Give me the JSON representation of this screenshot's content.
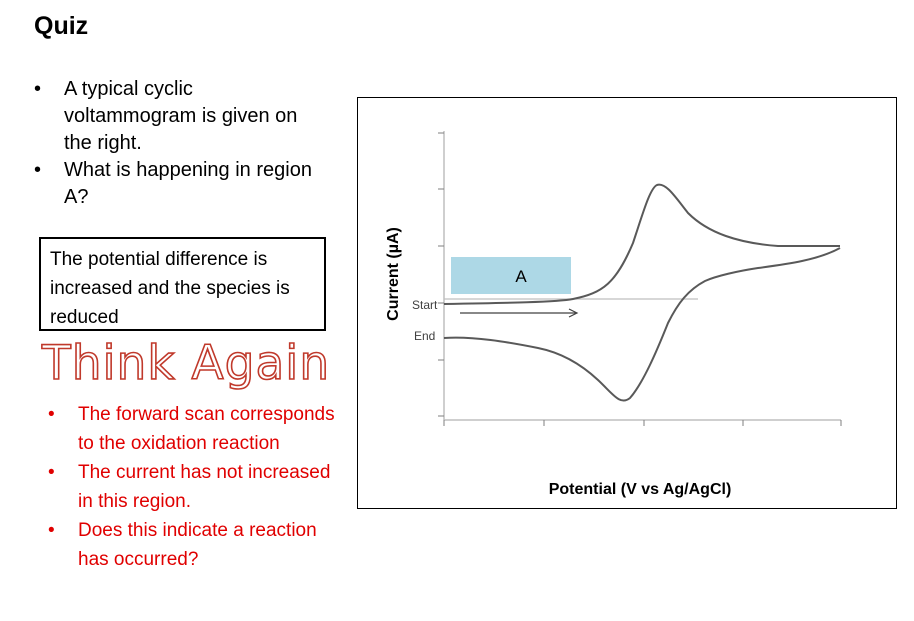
{
  "slide": {
    "title": "Quiz",
    "bullets": [
      "A typical cyclic voltammogram is given on the right.",
      "What is happening in region A?"
    ],
    "answer": "The potential difference is increased and the species is reduced",
    "feedback_title": "Think Again",
    "hints": [
      "The forward scan corresponds to the oxidation reaction",
      "The current has not increased in this region.",
      "Does this indicate a reaction has occurred?"
    ]
  },
  "chart_data": {
    "type": "line",
    "title": "",
    "xlabel": "Potential (V vs Ag/AgCl)",
    "ylabel": "Current (µA)",
    "region_label": "A",
    "start_label": "Start",
    "end_label": "End",
    "series": [
      {
        "x": [
          0,
          1.0,
          1.5,
          1.8,
          2.0,
          2.5,
          3.0,
          4.0
        ],
        "y": [
          1.1,
          1.3,
          1.9,
          2.7,
          2.4,
          1.6,
          1.55,
          1.5
        ]
      },
      {
        "x": [
          4.0,
          3.0,
          2.5,
          2.2,
          1.8,
          1.6,
          1.4,
          1.0,
          0
        ],
        "y": [
          1.5,
          1.35,
          1.25,
          1.0,
          0.1,
          -0.4,
          -0.2,
          0.4,
          0.5
        ]
      }
    ],
    "colors": {
      "curve": "#595959",
      "region_fill": "#add8e6",
      "axis": "#7f7f7f"
    }
  }
}
